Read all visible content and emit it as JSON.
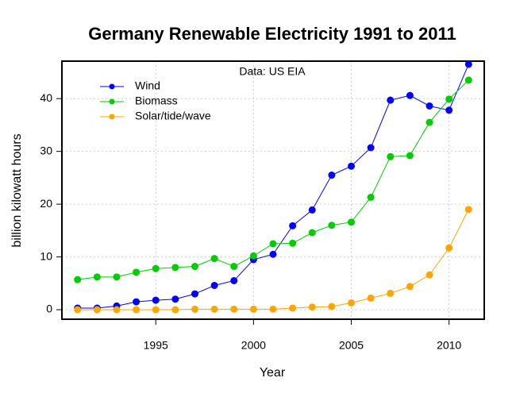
{
  "chart_data": {
    "type": "line",
    "title": "Germany Renewable Electricity 1991 to 2011",
    "annotation": "Data: US EIA",
    "x_label": "Year",
    "y_label": "billion kilowatt hours",
    "x": [
      1991,
      1992,
      1993,
      1994,
      1995,
      1996,
      1997,
      1998,
      1999,
      2000,
      2001,
      2002,
      2003,
      2004,
      2005,
      2006,
      2007,
      2008,
      2009,
      2010,
      2011
    ],
    "series": [
      {
        "name": "Wind",
        "color": "#0000ff",
        "values": [
          0.3,
          0.3,
          0.7,
          1.5,
          1.8,
          2.0,
          3.0,
          4.6,
          5.5,
          9.5,
          10.5,
          15.9,
          18.9,
          25.5,
          27.2,
          30.7,
          39.7,
          40.6,
          38.6,
          37.8,
          46.5
        ]
      },
      {
        "name": "Biomass",
        "color": "#00cc00",
        "values": [
          5.7,
          6.2,
          6.2,
          7.1,
          7.8,
          8.0,
          8.2,
          9.7,
          8.2,
          10.2,
          12.5,
          12.6,
          14.6,
          16.0,
          16.6,
          21.3,
          29.0,
          29.2,
          35.5,
          39.9,
          43.5
        ]
      },
      {
        "name": "Solar/tide/wave",
        "color": "#ffa500",
        "values": [
          0,
          0,
          0,
          0,
          0,
          0,
          0.1,
          0.1,
          0.1,
          0.1,
          0.1,
          0.3,
          0.5,
          0.6,
          1.3,
          2.2,
          3.1,
          4.4,
          6.6,
          11.7,
          19.0
        ]
      }
    ],
    "xlim": [
      1990.2,
      2011.8
    ],
    "xticks": [
      1995,
      2000,
      2005,
      2010
    ],
    "ylim": [
      -1.8,
      47.1
    ],
    "yticks": [
      0,
      10,
      20,
      30,
      40
    ],
    "grid": true,
    "legend": "top-left"
  }
}
